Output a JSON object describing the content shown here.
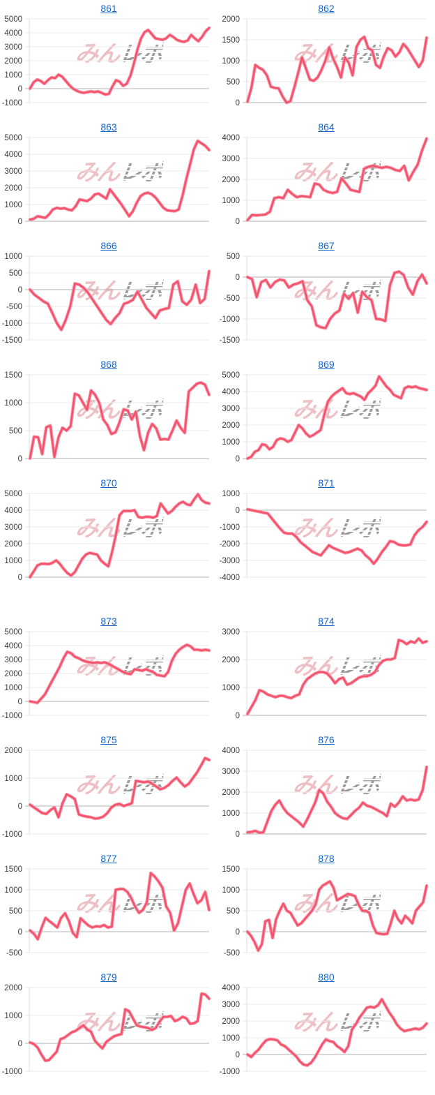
{
  "watermark": {
    "pink_text": "みん",
    "gray_text": "レポ"
  },
  "colors": {
    "background": "#ffffff",
    "line": "#f4536e",
    "line_halo": "#f99aa9",
    "grid": "#e9e9e9",
    "zero_line": "#b0b0b0",
    "axis_line": "#dcdcdc",
    "tick_text": "#3d3d3d",
    "link": "#1565d0"
  },
  "layout_note": "2-column grid of machine payout sparkline charts; blank spacer row after machine 871 (machines 865 and 872 absent)",
  "chart_data": [
    {
      "title": "861",
      "type": "line",
      "ticks": [
        5000,
        4000,
        3000,
        2000,
        1000,
        0,
        -1000
      ],
      "ylim": [
        -1000,
        5000
      ],
      "values": [
        0,
        450,
        650,
        550,
        350,
        600,
        800,
        750,
        1000,
        850,
        550,
        250,
        0,
        -150,
        -250,
        -300,
        -250,
        -200,
        -250,
        -200,
        -300,
        -420,
        -380,
        150,
        600,
        500,
        200,
        350,
        900,
        1800,
        2800,
        3600,
        4050,
        4200,
        3900,
        3600,
        3550,
        3500,
        3600,
        3850,
        3700,
        3500,
        3400,
        3350,
        3450,
        3850,
        3600,
        3400,
        3700,
        4100,
        4350
      ]
    },
    {
      "title": "862",
      "type": "line",
      "ticks": [
        2000,
        1500,
        1000,
        500,
        0
      ],
      "ylim": [
        0,
        2000
      ],
      "values": [
        20,
        350,
        900,
        830,
        780,
        650,
        380,
        350,
        340,
        150,
        0,
        30,
        350,
        700,
        1080,
        820,
        550,
        520,
        600,
        780,
        1000,
        1320,
        1050,
        850,
        600,
        1080,
        950,
        650,
        1330,
        1500,
        1570,
        1300,
        1250,
        900,
        830,
        1100,
        1300,
        1250,
        1100,
        1200,
        1400,
        1300,
        1150,
        1000,
        850,
        1000,
        1550
      ]
    },
    {
      "title": "863",
      "type": "line",
      "ticks": [
        5000,
        4000,
        3000,
        2000,
        1000,
        0
      ],
      "ylim": [
        0,
        5000
      ],
      "values": [
        100,
        150,
        300,
        250,
        200,
        400,
        700,
        800,
        750,
        780,
        700,
        650,
        900,
        1300,
        1250,
        1200,
        1350,
        1600,
        1650,
        1500,
        1350,
        1900,
        1600,
        1300,
        1000,
        650,
        300,
        600,
        1100,
        1500,
        1650,
        1700,
        1600,
        1400,
        1100,
        800,
        650,
        620,
        600,
        700,
        1500,
        2500,
        3400,
        4300,
        4800,
        4650,
        4500,
        4250
      ]
    },
    {
      "title": "864",
      "type": "line",
      "ticks": [
        4000,
        3000,
        2000,
        1000,
        0
      ],
      "ylim": [
        0,
        4000
      ],
      "values": [
        50,
        300,
        280,
        300,
        320,
        450,
        1100,
        1150,
        1100,
        1500,
        1300,
        1150,
        1200,
        1180,
        1150,
        1800,
        1750,
        1500,
        1400,
        1350,
        1400,
        2050,
        1800,
        1500,
        1450,
        1400,
        2500,
        2600,
        2650,
        2600,
        2550,
        2600,
        2550,
        2450,
        2400,
        2650,
        1950,
        2350,
        2700,
        3400,
        3950
      ]
    },
    {
      "title": "866",
      "type": "line",
      "ticks": [
        1000,
        500,
        0,
        -500,
        -1000,
        -1500
      ],
      "ylim": [
        -1500,
        1000
      ],
      "values": [
        0,
        -150,
        -250,
        -350,
        -420,
        -700,
        -1000,
        -1200,
        -900,
        -500,
        180,
        150,
        50,
        -100,
        -300,
        -500,
        -700,
        -900,
        -1030,
        -850,
        -700,
        -420,
        -380,
        -300,
        -60,
        -300,
        -550,
        -700,
        -850,
        -620,
        -580,
        -550,
        150,
        250,
        -350,
        -450,
        -300,
        150,
        -400,
        -280,
        550
      ]
    },
    {
      "title": "867",
      "type": "line",
      "ticks": [
        500,
        0,
        -500,
        -1000,
        -1500
      ],
      "ylim": [
        -1500,
        500
      ],
      "values": [
        0,
        -50,
        -480,
        -120,
        -70,
        -250,
        -120,
        -60,
        -80,
        -250,
        -180,
        -150,
        -100,
        -550,
        -700,
        -1150,
        -1200,
        -1220,
        -1000,
        -870,
        -800,
        -400,
        -520,
        -380,
        -850,
        -350,
        -480,
        -550,
        -1000,
        -1010,
        -1050,
        -200,
        100,
        130,
        50,
        -250,
        -420,
        -100,
        60,
        -150
      ]
    },
    {
      "title": "868",
      "type": "line",
      "ticks": [
        1500,
        1000,
        500,
        0
      ],
      "ylim": [
        0,
        1500
      ],
      "values": [
        0,
        390,
        380,
        80,
        560,
        590,
        30,
        380,
        550,
        500,
        580,
        1160,
        1130,
        1000,
        870,
        1220,
        1140,
        1000,
        700,
        600,
        440,
        470,
        650,
        880,
        860,
        700,
        840,
        400,
        150,
        460,
        620,
        540,
        340,
        350,
        340,
        500,
        680,
        550,
        460,
        1200,
        1270,
        1340,
        1360,
        1320,
        1140
      ]
    },
    {
      "title": "869",
      "type": "line",
      "ticks": [
        5000,
        4000,
        3000,
        2000,
        1000,
        0
      ],
      "ylim": [
        0,
        5000
      ],
      "values": [
        0,
        100,
        400,
        500,
        850,
        800,
        550,
        700,
        1100,
        1200,
        1150,
        1000,
        1100,
        1550,
        2000,
        1800,
        1500,
        1300,
        1400,
        1550,
        1700,
        2600,
        3400,
        3700,
        3900,
        4050,
        4200,
        3900,
        3850,
        3900,
        3800,
        3700,
        3500,
        3900,
        4100,
        4350,
        4900,
        4600,
        4300,
        4100,
        3800,
        3700,
        3600,
        4200,
        4300,
        4250,
        4300,
        4200,
        4150,
        4100
      ]
    },
    {
      "title": "870",
      "type": "line",
      "ticks": [
        5000,
        4000,
        3000,
        2000,
        1000,
        0
      ],
      "ylim": [
        0,
        5000
      ],
      "values": [
        0,
        350,
        700,
        800,
        800,
        780,
        850,
        1000,
        800,
        500,
        250,
        100,
        300,
        700,
        1100,
        1350,
        1450,
        1400,
        1350,
        1000,
        800,
        650,
        1500,
        2500,
        3700,
        3950,
        3950,
        3950,
        4000,
        3600,
        3550,
        3600,
        3600,
        3550,
        3650,
        4400,
        4100,
        3800,
        3950,
        4200,
        4400,
        4500,
        4350,
        4300,
        4650,
        4950,
        4600,
        4450,
        4400
      ]
    },
    {
      "title": "871",
      "type": "line",
      "ticks": [
        1000,
        0,
        -1000,
        -2000,
        -3000,
        -4000
      ],
      "ylim": [
        -4000,
        1000
      ],
      "values": [
        50,
        0,
        -50,
        -100,
        -150,
        -200,
        -500,
        -800,
        -1100,
        -1350,
        -1400,
        -1400,
        -1600,
        -1900,
        -2100,
        -2300,
        -2500,
        -2600,
        -2700,
        -2400,
        -2100,
        -2250,
        -2350,
        -2450,
        -2550,
        -2500,
        -2400,
        -2300,
        -2400,
        -2700,
        -2900,
        -3200,
        -2900,
        -2500,
        -2200,
        -1850,
        -1900,
        -2050,
        -2100,
        -2100,
        -2050,
        -1500,
        -1200,
        -1000,
        -700
      ]
    },
    {
      "title": "873",
      "type": "line",
      "ticks": [
        5000,
        4000,
        3000,
        2000,
        1000,
        0,
        -1000
      ],
      "ylim": [
        -1000,
        5000
      ],
      "values": [
        0,
        -50,
        -100,
        200,
        500,
        1000,
        1500,
        2000,
        2500,
        3100,
        3550,
        3450,
        3200,
        3100,
        2950,
        2850,
        2800,
        2750,
        2800,
        2750,
        2800,
        2700,
        2550,
        2400,
        2250,
        2100,
        2000,
        1950,
        2300,
        2250,
        2200,
        2300,
        2200,
        2100,
        1900,
        1850,
        1800,
        2100,
        2900,
        3400,
        3700,
        3900,
        4050,
        3950,
        3700,
        3700,
        3650,
        3700,
        3650
      ]
    },
    {
      "title": "874",
      "type": "line",
      "ticks": [
        3000,
        2000,
        1000,
        0
      ],
      "ylim": [
        0,
        3000
      ],
      "values": [
        50,
        300,
        550,
        900,
        850,
        750,
        700,
        650,
        700,
        700,
        650,
        620,
        700,
        750,
        1100,
        1300,
        1400,
        1500,
        1550,
        1550,
        1500,
        1350,
        1150,
        1300,
        1350,
        1100,
        1150,
        1250,
        1350,
        1400,
        1400,
        1450,
        1550,
        1800,
        1950,
        2000,
        2000,
        2050,
        2700,
        2650,
        2550,
        2650,
        2600,
        2750,
        2600,
        2650
      ]
    },
    {
      "title": "875",
      "type": "line",
      "ticks": [
        2000,
        1000,
        0,
        -1000
      ],
      "ylim": [
        -1000,
        2000
      ],
      "values": [
        50,
        -50,
        -150,
        -250,
        -280,
        -150,
        -50,
        -400,
        100,
        420,
        350,
        250,
        -300,
        -350,
        -380,
        -400,
        -450,
        -430,
        -380,
        -250,
        -50,
        50,
        80,
        0,
        50,
        100,
        900,
        880,
        850,
        880,
        800,
        700,
        600,
        650,
        750,
        900,
        1020,
        850,
        700,
        800,
        1000,
        1200,
        1450,
        1720,
        1650
      ]
    },
    {
      "title": "876",
      "type": "line",
      "ticks": [
        4000,
        3000,
        2000,
        1000,
        0
      ],
      "ylim": [
        0,
        4000
      ],
      "values": [
        80,
        100,
        150,
        60,
        80,
        600,
        1100,
        1400,
        1600,
        1250,
        1000,
        850,
        700,
        550,
        350,
        700,
        1100,
        1500,
        2100,
        1950,
        1550,
        1300,
        1000,
        850,
        750,
        720,
        900,
        1100,
        1250,
        1500,
        1350,
        1300,
        1200,
        1100,
        1000,
        850,
        1450,
        1300,
        1500,
        1800,
        1600,
        1650,
        1600,
        1650,
        2100,
        3200
      ]
    },
    {
      "title": "877",
      "type": "line",
      "ticks": [
        1500,
        1000,
        500,
        0,
        -500
      ],
      "ylim": [
        -500,
        1500
      ],
      "values": [
        30,
        -50,
        -180,
        100,
        330,
        250,
        180,
        100,
        330,
        440,
        250,
        -30,
        -130,
        320,
        230,
        150,
        100,
        130,
        120,
        160,
        100,
        120,
        1000,
        1020,
        1020,
        950,
        800,
        600,
        450,
        520,
        700,
        1400,
        1320,
        1200,
        1050,
        600,
        450,
        30,
        200,
        600,
        1000,
        1150,
        900,
        680,
        750,
        950,
        520
      ]
    },
    {
      "title": "878",
      "type": "line",
      "ticks": [
        1500,
        1000,
        500,
        0,
        -500
      ],
      "ylim": [
        -500,
        1500
      ],
      "values": [
        0,
        -100,
        -250,
        -450,
        -300,
        250,
        280,
        -150,
        300,
        500,
        670,
        500,
        450,
        300,
        150,
        200,
        300,
        400,
        500,
        650,
        1000,
        1100,
        1150,
        1200,
        1050,
        750,
        800,
        850,
        900,
        880,
        850,
        650,
        500,
        500,
        450,
        150,
        -30,
        -50,
        -60,
        -50,
        200,
        500,
        300,
        200,
        380,
        300,
        200,
        500,
        600,
        700,
        1100
      ]
    },
    {
      "title": "879",
      "type": "line",
      "ticks": [
        2000,
        1000,
        0,
        -1000
      ],
      "ylim": [
        -1000,
        2000
      ],
      "values": [
        30,
        -20,
        -150,
        -400,
        -620,
        -600,
        -450,
        -300,
        150,
        200,
        300,
        400,
        450,
        550,
        650,
        500,
        420,
        100,
        -50,
        -180,
        50,
        150,
        250,
        300,
        330,
        1220,
        1150,
        900,
        650,
        600,
        580,
        550,
        480,
        550,
        780,
        950,
        950,
        980,
        800,
        850,
        950,
        900,
        700,
        720,
        800,
        1780,
        1750,
        1600
      ]
    },
    {
      "title": "880",
      "type": "line",
      "ticks": [
        4000,
        3000,
        2000,
        1000,
        0,
        -1000
      ],
      "ylim": [
        -1000,
        4000
      ],
      "values": [
        0,
        -150,
        100,
        300,
        600,
        850,
        920,
        900,
        850,
        600,
        500,
        300,
        100,
        -100,
        -400,
        -600,
        -650,
        -500,
        -200,
        200,
        600,
        900,
        800,
        750,
        500,
        350,
        150,
        500,
        1500,
        1800,
        2200,
        2500,
        2800,
        2850,
        2800,
        2950,
        3300,
        2900,
        2500,
        2200,
        1800,
        1550,
        1400,
        1450,
        1500,
        1550,
        1500,
        1600,
        1850
      ]
    }
  ]
}
